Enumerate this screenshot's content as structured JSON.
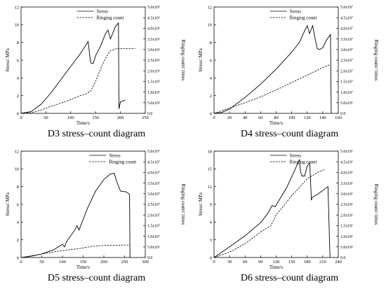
{
  "chart_data": [
    {
      "type": "line",
      "caption": "D3 stress–count diagram",
      "xlabel": "Time/s",
      "ylabel": "Stress/ MPa",
      "y2label": "Ringing count/ times",
      "xlim": [
        0,
        250
      ],
      "ylim": [
        0,
        12
      ],
      "y2lim": [
        0,
        5000000
      ],
      "xticks": [
        "0",
        "50",
        "100",
        "150",
        "200",
        "250"
      ],
      "yticks": [
        "0",
        "2",
        "4",
        "6",
        "8",
        "10",
        "12"
      ],
      "y2ticks": [
        "0.0",
        "5.0x10⁵",
        "1.0x10⁶",
        "1.5x10⁶",
        "2.0x10⁶",
        "2.5x10⁶",
        "3.0x10⁶",
        "3.5x10⁶",
        "4.0x10⁶",
        "4.5x10⁶",
        "5.0x10⁶"
      ],
      "legend": {
        "position": "top-center",
        "entries": [
          "Stress",
          "Ringing count"
        ]
      },
      "series": [
        {
          "name": "Stress",
          "axis": "left",
          "style": "solid",
          "x": [
            0,
            20,
            40,
            60,
            80,
            100,
            120,
            135,
            140,
            145,
            150,
            160,
            170,
            175,
            180,
            190,
            196,
            197,
            200,
            210
          ],
          "y": [
            0,
            0.2,
            1.0,
            2.3,
            3.8,
            5.3,
            6.8,
            8.1,
            5.7,
            5.6,
            6.5,
            7.6,
            9.0,
            9.4,
            8.4,
            9.8,
            10.2,
            0.5,
            1.3,
            1.5
          ]
        },
        {
          "name": "Ringing count",
          "axis": "right",
          "style": "dashed",
          "x": [
            0,
            20,
            40,
            60,
            80,
            100,
            120,
            130,
            140,
            150,
            160,
            170,
            180,
            190,
            200,
            220,
            230
          ],
          "y": [
            0,
            30000,
            150000,
            330000,
            480000,
            650000,
            840000,
            900000,
            1050000,
            1500000,
            2100000,
            2600000,
            2950000,
            3030000,
            3040000,
            3050000,
            3050000
          ]
        }
      ]
    },
    {
      "type": "line",
      "caption": "D4 stress–count diagram",
      "xlabel": "Time/s",
      "ylabel": "Stress/ MPa",
      "y2label": "Ringing count/ times",
      "xlim": [
        0,
        160
      ],
      "ylim": [
        0,
        12
      ],
      "y2lim": [
        0,
        50000000
      ],
      "xticks": [
        "0",
        "20",
        "40",
        "60",
        "80",
        "100",
        "120",
        "140",
        "160"
      ],
      "yticks": [
        "0",
        "2",
        "4",
        "6",
        "8",
        "10",
        "12"
      ],
      "y2ticks": [
        "0.0",
        "5.0x10⁶",
        "1.0x10⁷",
        "1.5x10⁷",
        "2.0x10⁷",
        "2.5x10⁷",
        "3.0x10⁷",
        "3.5x10⁷",
        "4.0x10⁷",
        "4.5x10⁷",
        "5.0x10⁷"
      ],
      "legend": {
        "position": "top-center",
        "entries": [
          "Stress",
          "Ringing count"
        ]
      },
      "series": [
        {
          "name": "Stress",
          "axis": "left",
          "style": "solid",
          "x": [
            0,
            10,
            20,
            40,
            60,
            80,
            100,
            110,
            115,
            120,
            123,
            127,
            130,
            133,
            136,
            140,
            145,
            150,
            151
          ],
          "y": [
            0,
            0.1,
            0.5,
            1.8,
            3.3,
            5.0,
            6.9,
            8.0,
            9.0,
            9.9,
            9.0,
            9.9,
            8.5,
            7.3,
            7.2,
            7.4,
            8.3,
            8.9,
            0
          ]
        },
        {
          "name": "Ringing count",
          "axis": "right",
          "style": "dashed",
          "x": [
            0,
            20,
            40,
            60,
            80,
            100,
            120,
            140,
            150
          ],
          "y": [
            0,
            2500000,
            5000000,
            7800000,
            11000000,
            14500000,
            18000000,
            21500000,
            23000000
          ]
        }
      ]
    },
    {
      "type": "line",
      "caption": "D5 stress–count diagram",
      "xlabel": "Time/s",
      "ylabel": "Stress/ MPa",
      "y2label": "Ringing count/ times",
      "xlim": [
        0,
        300
      ],
      "ylim": [
        0,
        12
      ],
      "y2lim": [
        0,
        50000000
      ],
      "xticks": [
        "0",
        "50",
        "100",
        "150",
        "200",
        "250",
        "300"
      ],
      "yticks": [
        "0",
        "2",
        "4",
        "6",
        "8",
        "10",
        "12"
      ],
      "y2ticks": [
        "0.0",
        "5.0x10⁶",
        "1.0x10⁷",
        "1.5x10⁷",
        "2.0x10⁷",
        "2.5x10⁷",
        "3.0x10⁷",
        "3.5x10⁷",
        "4.0x10⁷",
        "4.5x10⁷",
        "5.0x10⁷"
      ],
      "legend": {
        "position": "top-right",
        "entries": [
          "Stress",
          "Ringing count"
        ]
      },
      "series": [
        {
          "name": "Stress",
          "axis": "left",
          "style": "solid",
          "x": [
            0,
            20,
            50,
            80,
            100,
            105,
            110,
            130,
            135,
            140,
            160,
            180,
            200,
            215,
            225,
            230,
            240,
            255,
            262,
            263
          ],
          "y": [
            0,
            0.1,
            0.4,
            0.9,
            1.5,
            1.2,
            1.8,
            3.1,
            3.6,
            3.1,
            5.5,
            7.5,
            8.8,
            9.4,
            9.5,
            8.7,
            7.5,
            7.4,
            7.1,
            0
          ]
        },
        {
          "name": "Ringing count",
          "axis": "right",
          "style": "dashed",
          "x": [
            0,
            30,
            60,
            90,
            110,
            140,
            170,
            200,
            230,
            262
          ],
          "y": [
            0,
            1000000,
            2000000,
            3000000,
            3500000,
            4200000,
            5200000,
            5700000,
            5800000,
            5900000
          ]
        }
      ]
    },
    {
      "type": "line",
      "caption": "D6 stress–count diagram",
      "xlabel": "Time/s",
      "ylabel": "Stress/ MPa",
      "y2label": "Ringing count/ times",
      "xlim": [
        0,
        240
      ],
      "ylim": [
        0,
        18
      ],
      "y2lim": [
        0,
        5000000
      ],
      "xticks": [
        "0",
        "30",
        "60",
        "90",
        "120",
        "150",
        "180",
        "210",
        "240"
      ],
      "yticks": [
        "0",
        "3",
        "6",
        "9",
        "12",
        "15",
        "18"
      ],
      "y2ticks": [
        "0.0",
        "5.0x10⁵",
        "1.0x10⁶",
        "1.5x10⁶",
        "2.0x10⁶",
        "2.5x10⁶",
        "3.0x10⁶",
        "3.5x10⁶",
        "4.0x10⁶",
        "4.5x10⁶",
        "5.0x10⁶"
      ],
      "legend": {
        "position": "top-center",
        "entries": [
          "Stress",
          "Ringing count"
        ]
      },
      "series": [
        {
          "name": "Stress",
          "axis": "left",
          "style": "solid",
          "x": [
            0,
            30,
            60,
            90,
            105,
            112,
            118,
            125,
            140,
            155,
            165,
            167,
            170,
            175,
            180,
            185,
            188,
            190,
            200,
            220,
            224
          ],
          "y": [
            0,
            1.8,
            3.7,
            5.9,
            7.6,
            8.8,
            8.6,
            9.6,
            11.8,
            14.6,
            16.6,
            14.5,
            13.8,
            13.8,
            15.5,
            16.0,
            9.7,
            10.2,
            10.7,
            12.0,
            0
          ]
        },
        {
          "name": "Ringing count",
          "axis": "right",
          "style": "dashed",
          "x": [
            0,
            30,
            60,
            90,
            110,
            120,
            130,
            150,
            165,
            180,
            200,
            215
          ],
          "y": [
            0,
            250000,
            650000,
            1200000,
            1500000,
            2000000,
            2300000,
            2900000,
            3300000,
            3700000,
            4000000,
            4150000
          ]
        }
      ]
    }
  ]
}
